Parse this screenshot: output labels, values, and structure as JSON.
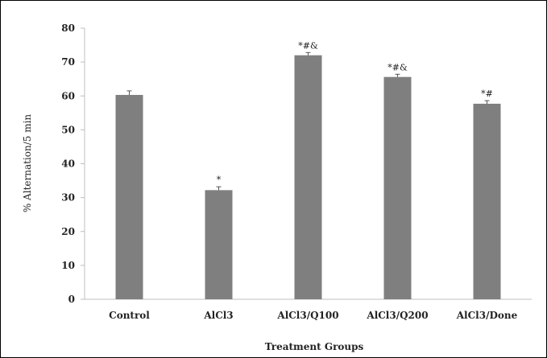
{
  "chart_data": {
    "type": "bar",
    "title": "",
    "xlabel": "Treatment Groups",
    "ylabel": "% Alternation/5 min",
    "ylim": [
      0,
      80
    ],
    "yticks": [
      0,
      10,
      20,
      30,
      40,
      50,
      60,
      70,
      80
    ],
    "grid": false,
    "categories": [
      "Control",
      "AlCl3",
      "AlCl3/Q100",
      "AlCl3/Q200",
      "AlCl3/Done"
    ],
    "values": [
      60.3,
      32.2,
      72.0,
      65.6,
      57.7
    ],
    "errors": [
      1.2,
      1.0,
      0.8,
      0.8,
      0.9
    ],
    "annotations": [
      "",
      "*",
      "*#&",
      "*#&",
      "*#"
    ],
    "bar_color": "#7f7f7f"
  }
}
